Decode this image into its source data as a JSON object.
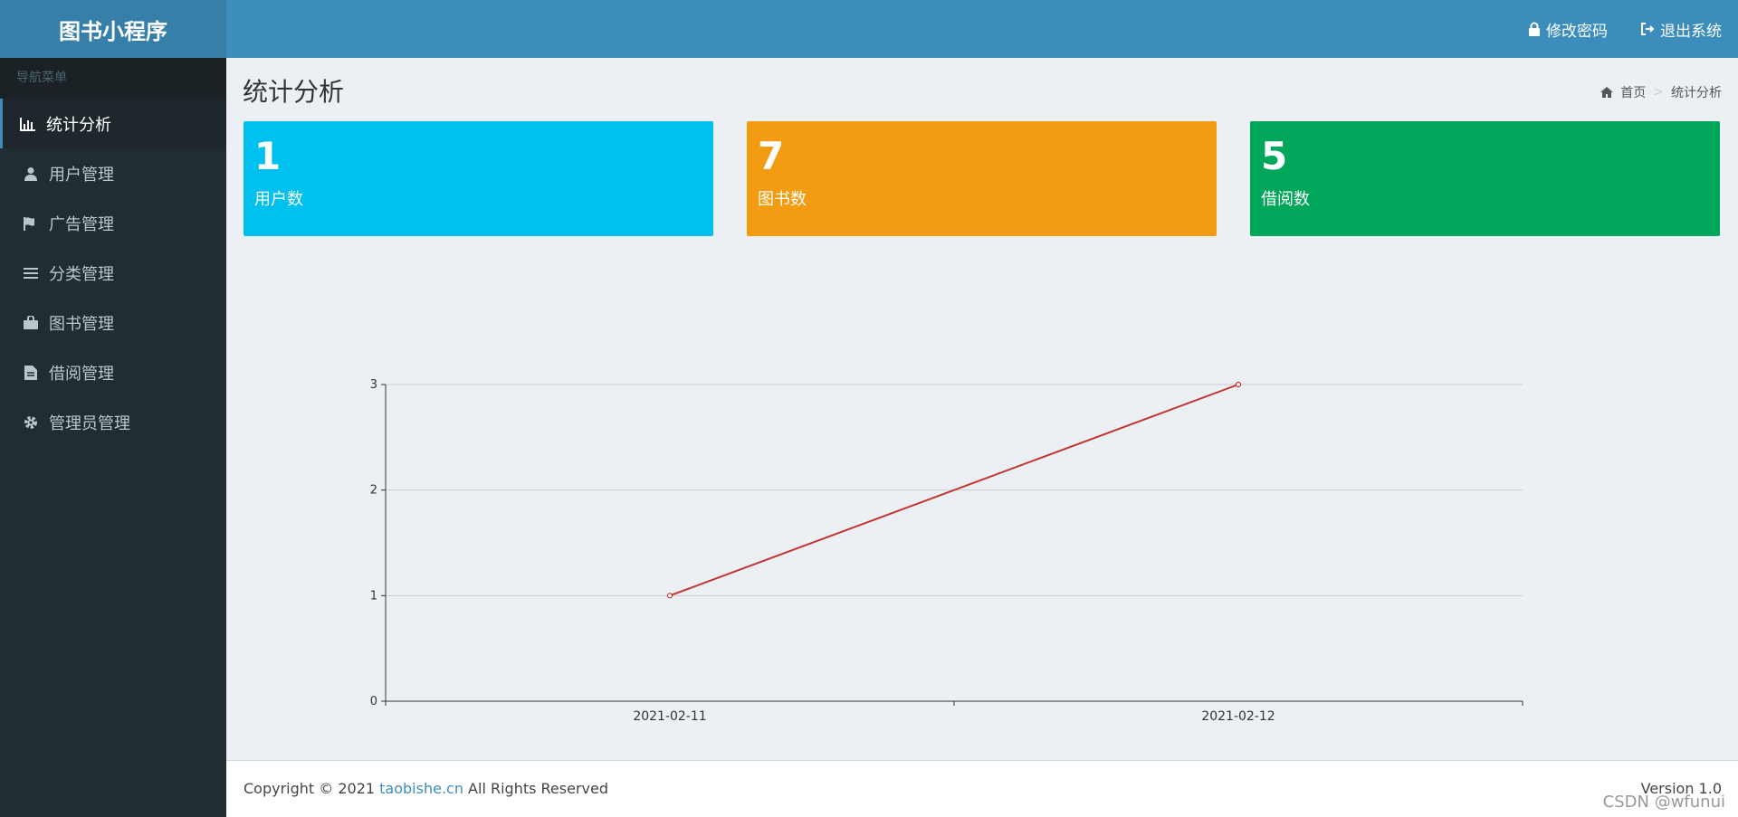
{
  "app": {
    "title": "图书小程序"
  },
  "header": {
    "change_password": "修改密码",
    "logout": "退出系统"
  },
  "sidebar": {
    "header": "导航菜单",
    "items": [
      {
        "label": "统计分析",
        "icon": "bar-chart-icon"
      },
      {
        "label": "用户管理",
        "icon": "user-icon"
      },
      {
        "label": "广告管理",
        "icon": "flag-icon"
      },
      {
        "label": "分类管理",
        "icon": "list-icon"
      },
      {
        "label": "图书管理",
        "icon": "bag-icon"
      },
      {
        "label": "借阅管理",
        "icon": "file-icon"
      },
      {
        "label": "管理员管理",
        "icon": "gear-icon"
      }
    ]
  },
  "page": {
    "title": "统计分析",
    "breadcrumb": {
      "home": "首页",
      "current": "统计分析"
    }
  },
  "stats": [
    {
      "value": "1",
      "label": "用户数",
      "color": "#00c0ef"
    },
    {
      "value": "7",
      "label": "图书数",
      "color": "#f39c12"
    },
    {
      "value": "5",
      "label": "借阅数",
      "color": "#00a65a"
    }
  ],
  "chart_data": {
    "type": "line",
    "categories": [
      "2021-02-11",
      "2021-02-12"
    ],
    "series": [
      {
        "values": [
          1,
          3
        ],
        "color": "#c23531"
      }
    ],
    "ylim": [
      0,
      3
    ],
    "yticks": [
      "0",
      "1",
      "2",
      "3"
    ],
    "grid": true
  },
  "footer": {
    "copyright_prefix": "Copyright © 2021 ",
    "site": "taobishe.cn",
    "copyright_suffix": " All Rights Reserved",
    "version": "Version 1.0"
  },
  "watermark": "CSDN @wfunui"
}
